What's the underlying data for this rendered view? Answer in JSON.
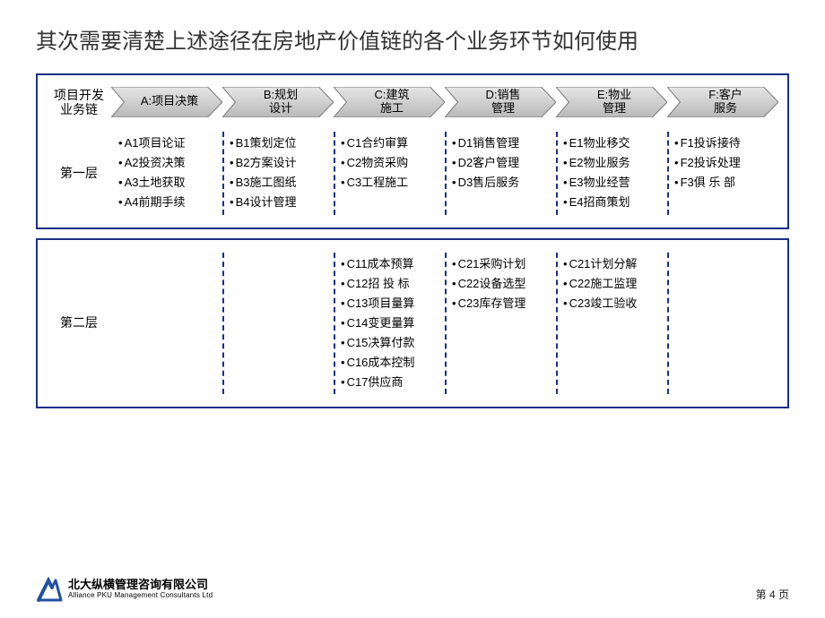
{
  "title": "其次需要清楚上述途径在房地产价值链的各个业务环节如何使用",
  "colors": {
    "panel_border": "#1a2e8a",
    "dash": "#1a2e8a",
    "arrow_fill_start": "#e6e6e6",
    "arrow_fill_end": "#b9b9b9",
    "arrow_stroke": "#7a7a7a",
    "text": "#000000",
    "logo_blue": "#2050a0"
  },
  "chain_label": "项目开发\n业务链",
  "layer1_label": "第一层",
  "layer2_label": "第二层",
  "stages": [
    {
      "label": "A:项目决策",
      "layer1": [
        "A1项目论证",
        "A2投资决策",
        "A3土地获取",
        "A4前期手续"
      ],
      "layer2": []
    },
    {
      "label": "B:规划\n设计",
      "layer1": [
        "B1策划定位",
        "B2方案设计",
        "B3施工图纸",
        "B4设计管理"
      ],
      "layer2": []
    },
    {
      "label": "C:建筑\n施工",
      "layer1": [
        "C1合约审算",
        "C2物资采购",
        "C3工程施工"
      ],
      "layer2": [
        "C11成本预算",
        "C12招 投 标",
        "C13项目量算",
        "C14变更量算",
        "C15决算付款",
        "C16成本控制",
        "C17供应商"
      ]
    },
    {
      "label": "D:销售\n管理",
      "layer1": [
        "D1销售管理",
        "D2客户管理",
        "D3售后服务"
      ],
      "layer2": [
        "C21采购计划",
        "C22设备选型",
        "C23库存管理"
      ]
    },
    {
      "label": "E:物业\n管理",
      "layer1": [
        "E1物业移交",
        "E2物业服务",
        "E3物业经营",
        "E4招商策划"
      ],
      "layer2": [
        "C21计划分解",
        "C22施工监理",
        "C23竣工验收"
      ]
    },
    {
      "label": "F:客户\n服务",
      "layer1": [
        "F1投诉接待",
        "F2投诉处理",
        "F3俱 乐 部"
      ],
      "layer2": []
    }
  ],
  "footer": {
    "company_cn": "北大纵横管理咨询有限公司",
    "company_en": "Alliance PKU Management Consultants Ltd",
    "page_prefix": "第 ",
    "page_num": "4",
    "page_suffix": " 页"
  }
}
